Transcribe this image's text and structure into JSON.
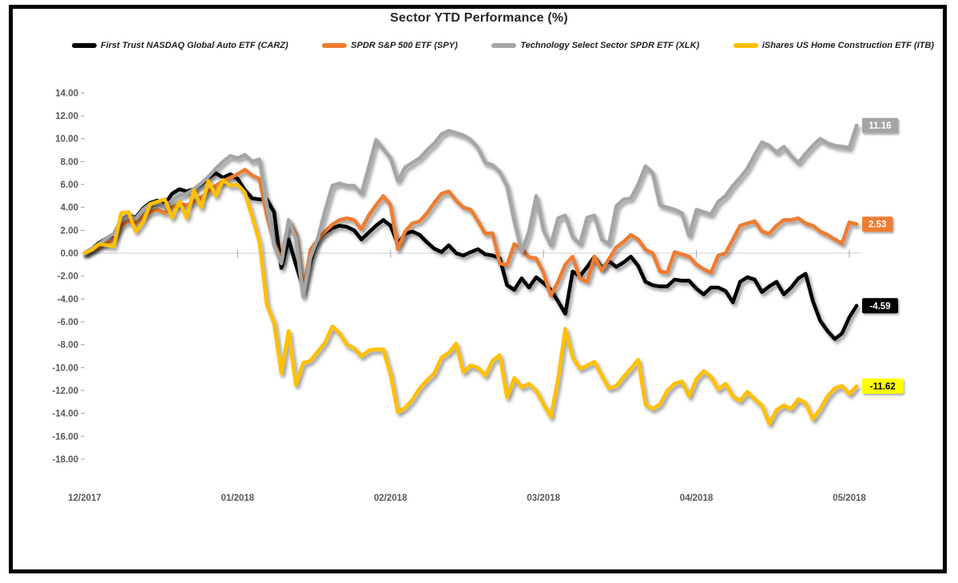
{
  "frame": {
    "background": "#FFFFFF",
    "border_color": "#000000"
  },
  "axis_style": {
    "text_color": "#595959",
    "zero_line_color": "#D9D9D9",
    "tick_color": "#A6A6A6"
  },
  "chart_data": {
    "type": "line",
    "title": "Sector YTD Performance (%)",
    "xlabel": "",
    "ylabel": "",
    "legend_position": "top",
    "gridlines": "zero-line-only",
    "ylim": [
      -18,
      14
    ],
    "y_tick_step": 2,
    "y_tick_labels": [
      "14.00",
      "12.00",
      "10.00",
      "8.00",
      "6.00",
      "4.00",
      "2.00",
      "0.00",
      "-2.00",
      "-4.00",
      "-6.00",
      "-8.00",
      "-10.00",
      "-12.00",
      "-14.00",
      "-16.00",
      "-18.00"
    ],
    "x_tick_labels": [
      "12/2017",
      "01/2018",
      "02/2018",
      "03/2018",
      "04/2018",
      "05/2018"
    ],
    "x_tick_indices": [
      0,
      21,
      42,
      63,
      84,
      105
    ],
    "series": [
      {
        "name": "First Trust NASDAQ Global Auto ETF (CARZ)",
        "ticker": "CARZ",
        "color": "#000000",
        "end_label": "-4.59",
        "end_label_bg": "#000000",
        "end_label_fg": "#FFFFFF",
        "values": [
          0.0,
          0.4,
          0.9,
          1.3,
          1.6,
          2.9,
          3.3,
          3.1,
          3.9,
          4.4,
          4.6,
          4.3,
          5.2,
          5.6,
          5.4,
          5.6,
          6.0,
          6.6,
          7.0,
          6.6,
          6.9,
          6.5,
          5.5,
          4.8,
          4.7,
          4.7,
          3.6,
          -1.3,
          1.2,
          -1.0,
          -3.0,
          -0.7,
          1.2,
          1.8,
          2.2,
          2.4,
          2.3,
          2.0,
          1.2,
          1.8,
          2.4,
          2.9,
          2.4,
          0.8,
          1.7,
          1.9,
          1.6,
          0.95,
          0.4,
          0.1,
          0.7,
          0.0,
          -0.2,
          0.1,
          0.35,
          -0.1,
          -0.2,
          -0.45,
          -2.8,
          -3.2,
          -2.2,
          -3.0,
          -2.1,
          -2.6,
          -3.2,
          -4.2,
          -5.3,
          -1.6,
          -2.0,
          -1.2,
          -0.3,
          -1.3,
          -0.7,
          -1.2,
          -0.8,
          -0.3,
          -1.1,
          -2.5,
          -2.8,
          -2.9,
          -2.9,
          -2.3,
          -2.4,
          -2.4,
          -3.1,
          -3.6,
          -3.0,
          -3.0,
          -3.3,
          -4.3,
          -2.5,
          -2.1,
          -2.3,
          -3.4,
          -2.9,
          -2.5,
          -3.6,
          -3.0,
          -2.2,
          -1.8,
          -4.2,
          -5.9,
          -6.8,
          -7.5,
          -7.0,
          -5.6,
          -4.59
        ]
      },
      {
        "name": "SPDR S&P 500 ETF (SPY)",
        "ticker": "SPY",
        "color": "#ED7D31",
        "end_label": "2.53",
        "end_label_bg": "#ED7D31",
        "end_label_fg": "#FFFFFF",
        "values": [
          0.0,
          0.3,
          0.6,
          0.9,
          1.2,
          2.4,
          2.8,
          2.6,
          3.2,
          3.6,
          3.8,
          3.5,
          4.0,
          4.3,
          4.2,
          4.5,
          4.9,
          5.4,
          5.9,
          6.3,
          6.6,
          6.9,
          7.3,
          6.8,
          6.5,
          3.3,
          0.95,
          -0.6,
          2.8,
          1.7,
          -3.5,
          0.3,
          1.2,
          1.9,
          2.5,
          2.9,
          3.05,
          2.9,
          2.1,
          3.3,
          4.2,
          5.0,
          4.2,
          0.35,
          1.9,
          2.6,
          2.8,
          3.5,
          4.4,
          5.2,
          5.4,
          4.6,
          4.0,
          3.8,
          2.8,
          1.7,
          1.75,
          -0.9,
          -1.05,
          0.8,
          0.35,
          -0.35,
          -0.45,
          -1.7,
          -3.7,
          -2.5,
          -1.0,
          -0.3,
          -2.2,
          -2.5,
          -0.3,
          -1.5,
          -0.5,
          0.5,
          1.0,
          1.6,
          1.2,
          0.3,
          0.0,
          -1.6,
          -1.7,
          0.1,
          -0.1,
          -0.3,
          -1.0,
          -1.4,
          -1.7,
          -0.2,
          0.0,
          1.2,
          2.4,
          2.6,
          2.8,
          1.9,
          1.7,
          2.4,
          2.9,
          2.9,
          3.05,
          2.6,
          2.4,
          1.9,
          1.6,
          1.2,
          0.85,
          2.7,
          2.53
        ]
      },
      {
        "name": "Technology Select Sector SPDR ETF (XLK)",
        "ticker": "XLK",
        "color": "#A5A5A5",
        "end_label": "11.16",
        "end_label_bg": "#A5A5A5",
        "end_label_fg": "#FFFFFF",
        "values": [
          0.0,
          0.4,
          0.8,
          1.3,
          1.7,
          2.9,
          3.3,
          3.0,
          3.8,
          4.3,
          4.4,
          4.1,
          4.6,
          5.0,
          5.2,
          5.6,
          6.1,
          6.7,
          7.4,
          8.0,
          8.5,
          8.3,
          8.6,
          8.0,
          8.2,
          4.2,
          0.7,
          -0.9,
          2.9,
          1.3,
          -3.8,
          -0.4,
          1.3,
          3.7,
          5.9,
          6.1,
          5.9,
          5.9,
          5.2,
          7.5,
          9.9,
          9.1,
          8.3,
          6.3,
          7.5,
          7.9,
          8.3,
          9.0,
          9.6,
          10.4,
          10.7,
          10.5,
          10.3,
          9.9,
          9.2,
          7.9,
          7.7,
          7.1,
          5.85,
          2.8,
          0.1,
          1.9,
          5.0,
          2.0,
          0.7,
          3.05,
          3.3,
          1.4,
          0.8,
          3.1,
          3.3,
          1.2,
          0.8,
          4.1,
          4.7,
          4.8,
          6.0,
          7.6,
          7.0,
          4.2,
          4.0,
          3.8,
          3.5,
          1.5,
          3.8,
          3.6,
          3.4,
          4.5,
          5.0,
          5.9,
          6.6,
          7.4,
          8.6,
          9.7,
          9.4,
          8.8,
          9.3,
          8.5,
          7.9,
          8.7,
          9.4,
          10.0,
          9.6,
          9.4,
          9.3,
          9.2,
          11.16
        ]
      },
      {
        "name": "iShares US Home Construction ETF (ITB)",
        "ticker": "ITB",
        "color": "#FFC000",
        "end_label": "-11.62",
        "end_label_bg": "#FFFF00",
        "end_label_fg": "#000000",
        "values": [
          0.0,
          0.3,
          0.8,
          0.7,
          0.6,
          3.5,
          3.6,
          1.9,
          2.7,
          4.3,
          4.5,
          4.7,
          3.1,
          4.5,
          3.1,
          5.5,
          4.0,
          6.3,
          5.0,
          6.4,
          5.9,
          6.0,
          5.3,
          3.2,
          1.0,
          -4.5,
          -6.1,
          -10.5,
          -6.8,
          -11.5,
          -9.6,
          -9.4,
          -8.6,
          -7.8,
          -6.4,
          -7.0,
          -8.0,
          -8.3,
          -9.0,
          -8.5,
          -8.4,
          -8.4,
          -10.6,
          -13.9,
          -13.5,
          -12.8,
          -11.8,
          -11.1,
          -10.5,
          -9.1,
          -8.7,
          -7.9,
          -10.4,
          -9.8,
          -10.0,
          -10.7,
          -9.4,
          -8.9,
          -12.6,
          -10.9,
          -11.7,
          -11.4,
          -12.0,
          -13.2,
          -14.3,
          -11.0,
          -6.6,
          -9.1,
          -10.1,
          -9.8,
          -9.5,
          -10.7,
          -11.8,
          -11.6,
          -10.8,
          -10.1,
          -9.3,
          -13.2,
          -13.6,
          -13.2,
          -12.0,
          -11.4,
          -11.2,
          -12.5,
          -11.0,
          -10.3,
          -10.8,
          -11.9,
          -11.4,
          -12.5,
          -12.9,
          -12.1,
          -12.75,
          -13.3,
          -14.9,
          -13.7,
          -13.3,
          -13.6,
          -12.75,
          -13.1,
          -14.5,
          -13.6,
          -12.5,
          -11.8,
          -11.6,
          -12.3,
          -11.62
        ]
      }
    ]
  }
}
